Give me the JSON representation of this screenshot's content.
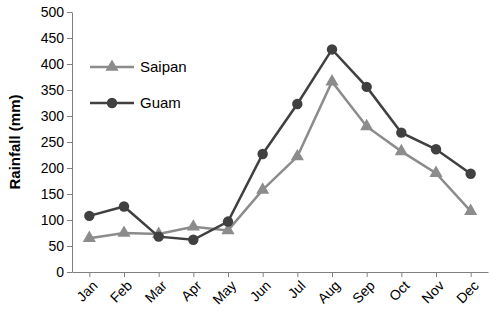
{
  "chart_data": {
    "type": "line",
    "y_label": "Rainfall (mm)",
    "categories": [
      "Jan",
      "Feb",
      "Mar",
      "Apr",
      "May",
      "Jun",
      "Jul",
      "Aug",
      "Sep",
      "Oct",
      "Nov",
      "Dec"
    ],
    "series": [
      {
        "name": "Saipan",
        "color": "#8c8c8c",
        "marker": "triangle",
        "line_style": "solid",
        "values": [
          65,
          75,
          73,
          87,
          80,
          158,
          222,
          366,
          280,
          232,
          190,
          117
        ]
      },
      {
        "name": "Guam",
        "color": "#404040",
        "marker": "circle",
        "line_style": "solid",
        "values": [
          108,
          126,
          68,
          62,
          97,
          227,
          323,
          428,
          356,
          268,
          236,
          189
        ]
      }
    ],
    "ylim": [
      0,
      500
    ],
    "yticks": [
      0,
      50,
      100,
      150,
      200,
      250,
      300,
      350,
      400,
      450,
      500
    ],
    "grid": false,
    "legend": "upper left"
  }
}
